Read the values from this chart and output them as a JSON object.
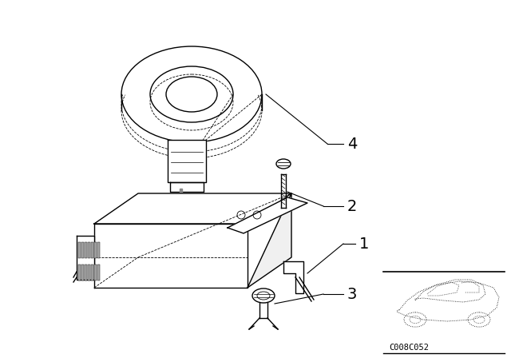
{
  "bg_color": "#ffffff",
  "line_color": "#000000",
  "fig_width": 6.4,
  "fig_height": 4.48,
  "dpi": 100,
  "code_text": "C008C052"
}
